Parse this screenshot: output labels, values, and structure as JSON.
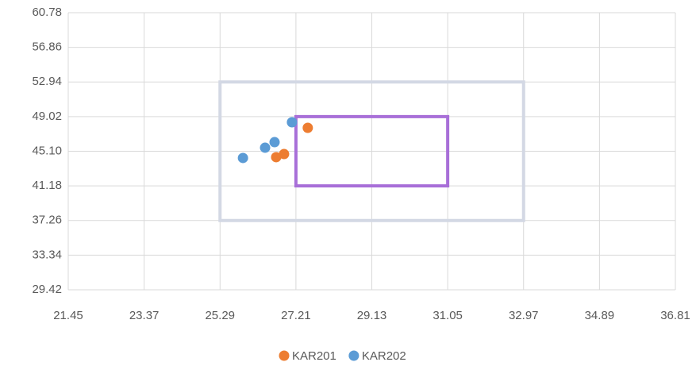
{
  "chart_data": {
    "type": "scatter",
    "series": [
      {
        "name": "KAR201",
        "color": "#ed7d31",
        "x": [
          27.51,
          26.91,
          26.71
        ],
        "values": [
          47.75,
          44.78,
          44.43
        ]
      },
      {
        "name": "KAR202",
        "color": "#5b9bd5",
        "x": [
          27.11,
          26.67,
          26.43,
          25.87
        ],
        "values": [
          48.38,
          46.13,
          45.5,
          44.34
        ]
      }
    ],
    "rectangles": [
      {
        "x": [
          25.29,
          32.97
        ],
        "y": [
          37.26,
          52.94
        ],
        "color": "#d3d8e4"
      },
      {
        "x": [
          27.21,
          31.05
        ],
        "y": [
          41.18,
          49.02
        ],
        "color": "#a86fd8"
      }
    ],
    "xlim": [
      21.45,
      36.81
    ],
    "xticks": [
      21.45,
      23.37,
      25.29,
      27.21,
      29.13,
      31.05,
      32.97,
      34.89,
      36.81
    ],
    "ylim": [
      29.42,
      60.78
    ],
    "yticks": [
      29.42,
      33.34,
      37.26,
      41.18,
      {
        "value": 45.1,
        "label": "45.10"
      },
      49.02,
      52.94,
      56.86,
      60.78
    ],
    "grid": true,
    "legend": "bottom"
  }
}
